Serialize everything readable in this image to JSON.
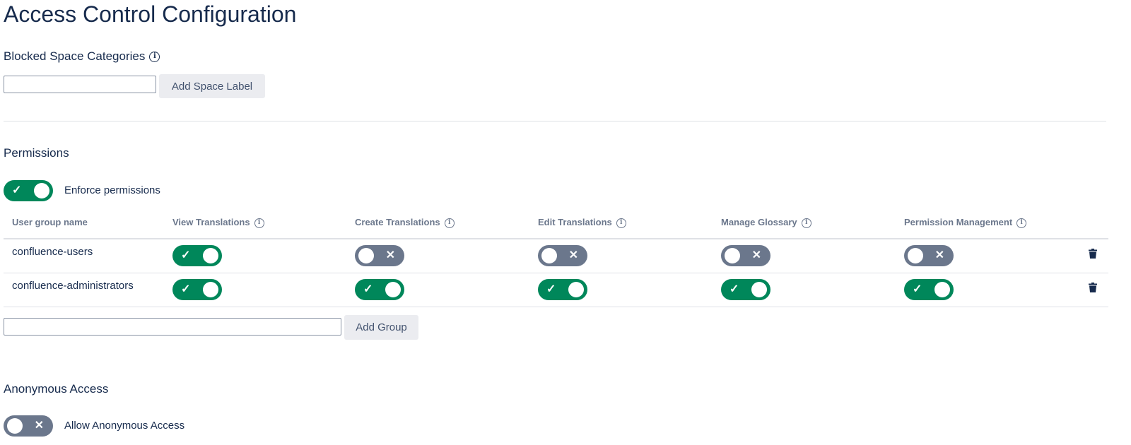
{
  "title": "Access Control Configuration",
  "blocked": {
    "heading": "Blocked Space Categories",
    "input_value": "",
    "button": "Add Space Label"
  },
  "permissions": {
    "heading": "Permissions",
    "enforce_label": "Enforce permissions",
    "enforce_on": true,
    "columns": [
      "User group name",
      "View Translations",
      "Create Translations",
      "Edit Translations",
      "Manage Glossary",
      "Permission Management"
    ],
    "rows": [
      {
        "name": "confluence-users",
        "values": [
          true,
          false,
          false,
          false,
          false
        ]
      },
      {
        "name": "confluence-administrators",
        "values": [
          true,
          true,
          true,
          true,
          true
        ]
      }
    ],
    "add_input_value": "",
    "add_button": "Add Group"
  },
  "anonymous": {
    "heading": "Anonymous Access",
    "label": "Allow Anonymous Access",
    "on": false
  },
  "colors": {
    "on": "#00875A",
    "off": "#6B778C",
    "text": "#172B4D"
  },
  "icons": {
    "check": "✓",
    "cross": "✕",
    "info": "i"
  }
}
